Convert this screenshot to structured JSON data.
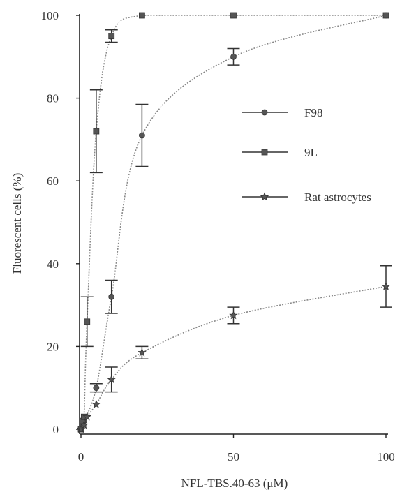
{
  "chart_data": {
    "type": "line",
    "title": "",
    "xlabel": "NFL-TBS.40-63 (μM)",
    "ylabel": "Fluorescent cells (%)",
    "xlim": [
      0,
      100
    ],
    "ylim": [
      0,
      100
    ],
    "x_ticks": [
      "0",
      "50",
      "100"
    ],
    "y_ticks": [
      "0",
      "20",
      "40",
      "60",
      "80",
      "100"
    ],
    "grid": false,
    "legend_position": "center-right",
    "series": [
      {
        "name": "F98",
        "marker": "circle",
        "points": [
          {
            "x": 0,
            "y": 0
          },
          {
            "x": 0.5,
            "y": 1
          },
          {
            "x": 1,
            "y": 2
          },
          {
            "x": 5,
            "y": 10,
            "err": 1
          },
          {
            "x": 10,
            "y": 32,
            "err": 4
          },
          {
            "x": 20,
            "y": 71,
            "err": 7.5
          },
          {
            "x": 50,
            "y": 90,
            "err": 2
          },
          {
            "x": 100,
            "y": 100
          }
        ]
      },
      {
        "name": "9L",
        "marker": "square",
        "points": [
          {
            "x": 0,
            "y": 0
          },
          {
            "x": 0.5,
            "y": 2
          },
          {
            "x": 1,
            "y": 3
          },
          {
            "x": 2,
            "y": 26,
            "err": 6
          },
          {
            "x": 5,
            "y": 72,
            "err": 10
          },
          {
            "x": 10,
            "y": 95,
            "err": 1.5
          },
          {
            "x": 20,
            "y": 100
          },
          {
            "x": 50,
            "y": 100
          },
          {
            "x": 100,
            "y": 100
          }
        ]
      },
      {
        "name": "Rat astrocytes",
        "marker": "star",
        "points": [
          {
            "x": 0,
            "y": 0
          },
          {
            "x": 1,
            "y": 1
          },
          {
            "x": 2,
            "y": 3
          },
          {
            "x": 5,
            "y": 6
          },
          {
            "x": 10,
            "y": 12,
            "err": 3
          },
          {
            "x": 20,
            "y": 18.5,
            "err": 1.5
          },
          {
            "x": 50,
            "y": 27.5,
            "err": 2
          },
          {
            "x": 100,
            "y": 34.5,
            "err": 5
          }
        ]
      }
    ]
  }
}
